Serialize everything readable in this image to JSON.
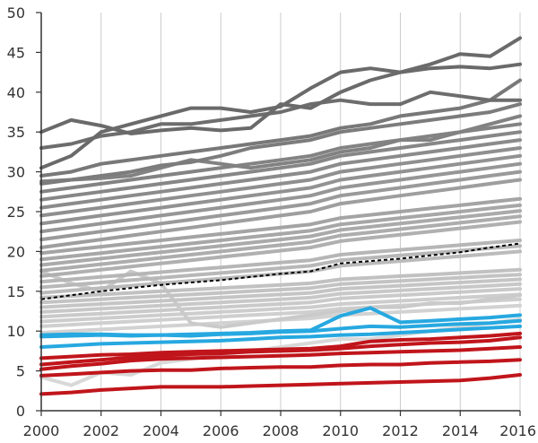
{
  "chart_data": {
    "type": "line",
    "title": "",
    "xlabel": "",
    "ylabel": "",
    "xlim": [
      2000,
      2016
    ],
    "ylim": [
      0,
      50
    ],
    "x_ticks": [
      2000,
      2002,
      2004,
      2006,
      2008,
      2010,
      2012,
      2014,
      2016
    ],
    "y_ticks": [
      0,
      5,
      10,
      15,
      20,
      25,
      30,
      35,
      40,
      45,
      50
    ],
    "grid": "vertical",
    "legend": "none",
    "colors": {
      "highlight_red": "#c0151b",
      "highlight_blue": "#27a8e0",
      "reference_dashed": "#000000",
      "background_grey_dark": "#6a6a6a",
      "background_grey_light": "#d8d8d8",
      "gridline": "#cccccc"
    },
    "x": [
      2000,
      2001,
      2002,
      2003,
      2004,
      2005,
      2006,
      2007,
      2008,
      2009,
      2010,
      2011,
      2012,
      2013,
      2014,
      2015,
      2016
    ],
    "reference_series": {
      "style": "dashed",
      "values": [
        14.0,
        14.5,
        15.0,
        15.4,
        15.8,
        16.1,
        16.4,
        16.8,
        17.2,
        17.5,
        18.5,
        18.8,
        19.1,
        19.5,
        19.9,
        20.5,
        21.0
      ]
    },
    "highlight_red_series": [
      {
        "values": [
          2.1,
          2.3,
          2.6,
          2.8,
          3.0,
          3.0,
          3.0,
          3.1,
          3.2,
          3.3,
          3.4,
          3.5,
          3.6,
          3.7,
          3.8,
          4.1,
          4.5
        ]
      },
      {
        "values": [
          4.4,
          4.6,
          4.8,
          5.0,
          5.1,
          5.1,
          5.3,
          5.4,
          5.5,
          5.5,
          5.7,
          5.8,
          5.8,
          6.0,
          6.1,
          6.2,
          6.4
        ]
      },
      {
        "values": [
          5.2,
          5.6,
          5.9,
          6.3,
          6.5,
          6.6,
          6.7,
          6.8,
          6.9,
          7.0,
          7.2,
          7.3,
          7.4,
          7.5,
          7.6,
          7.8,
          8.0
        ]
      },
      {
        "values": [
          5.8,
          6.1,
          6.4,
          6.7,
          6.9,
          7.1,
          7.2,
          7.4,
          7.5,
          7.6,
          7.8,
          8.1,
          8.3,
          8.5,
          8.6,
          8.8,
          9.2
        ]
      },
      {
        "values": [
          6.6,
          6.8,
          7.0,
          7.1,
          7.3,
          7.4,
          7.5,
          7.6,
          7.7,
          7.8,
          8.1,
          8.7,
          8.9,
          9.0,
          9.2,
          9.4,
          9.7
        ]
      }
    ],
    "highlight_blue_series": [
      {
        "values": [
          8.0,
          8.2,
          8.4,
          8.5,
          8.6,
          8.7,
          8.8,
          9.0,
          9.2,
          9.3,
          9.5,
          9.6,
          9.8,
          10.0,
          10.2,
          10.4,
          10.6
        ]
      },
      {
        "values": [
          9.3,
          9.4,
          9.5,
          9.4,
          9.5,
          9.4,
          9.6,
          9.7,
          9.9,
          10.0,
          10.3,
          10.6,
          10.5,
          10.7,
          10.9,
          11.0,
          11.3
        ]
      },
      {
        "values": [
          9.5,
          9.6,
          9.6,
          9.5,
          9.5,
          9.6,
          9.7,
          9.8,
          10.0,
          10.1,
          11.9,
          12.9,
          11.1,
          11.3,
          11.5,
          11.7,
          12.0
        ]
      }
    ],
    "background_series": [
      {
        "values": [
          35.0,
          36.5,
          35.8,
          34.8,
          35.2,
          35.5,
          35.2,
          35.5,
          38.5,
          38.0,
          40.0,
          41.5,
          42.5,
          43.0,
          43.2,
          43.0,
          43.5
        ]
      },
      {
        "values": [
          30.5,
          32.0,
          35.0,
          36.0,
          37.0,
          38.0,
          38.0,
          37.5,
          38.2,
          40.5,
          42.5,
          43.0,
          42.5,
          43.5,
          44.8,
          44.5,
          46.8
        ]
      },
      {
        "values": [
          33.0,
          33.5,
          34.5,
          35.0,
          36.0,
          36.0,
          36.5,
          37.0,
          37.5,
          38.5,
          39.0,
          38.5,
          38.5,
          40.0,
          39.5,
          39.0,
          39.0
        ]
      },
      {
        "values": [
          29.5,
          30.0,
          31.0,
          31.5,
          32.0,
          32.5,
          33.0,
          33.5,
          34.0,
          34.5,
          35.5,
          36.0,
          37.0,
          37.5,
          38.0,
          39.0,
          41.5
        ]
      },
      {
        "values": [
          28.5,
          29.0,
          29.5,
          30.0,
          30.8,
          31.2,
          32.0,
          33.0,
          33.5,
          34.0,
          35.0,
          35.5,
          36.0,
          36.5,
          37.0,
          37.5,
          38.5
        ]
      },
      {
        "values": [
          28.8,
          29.0,
          29.2,
          29.5,
          30.5,
          31.5,
          31.0,
          30.5,
          31.0,
          31.5,
          32.5,
          33.0,
          34.0,
          34.0,
          35.0,
          36.0,
          37.0
        ]
      },
      {
        "values": [
          27.5,
          28.0,
          28.5,
          29.0,
          29.5,
          30.0,
          30.5,
          31.0,
          31.5,
          32.0,
          33.0,
          33.5,
          34.0,
          34.5,
          35.0,
          35.5,
          36.0
        ]
      },
      {
        "values": [
          26.5,
          27.0,
          27.5,
          28.0,
          28.5,
          29.0,
          29.5,
          30.0,
          30.5,
          31.0,
          32.0,
          32.5,
          33.0,
          33.5,
          34.0,
          34.5,
          35.0
        ]
      },
      {
        "values": [
          25.5,
          26.0,
          26.5,
          27.0,
          27.5,
          28.0,
          28.5,
          29.0,
          29.5,
          30.0,
          31.0,
          31.5,
          32.0,
          32.5,
          33.0,
          33.5,
          34.0
        ]
      },
      {
        "values": [
          24.5,
          25.0,
          25.5,
          26.0,
          26.5,
          27.0,
          27.5,
          28.0,
          28.5,
          29.0,
          30.0,
          30.5,
          31.0,
          31.5,
          32.0,
          32.5,
          33.0
        ]
      },
      {
        "values": [
          23.5,
          24.0,
          24.5,
          25.0,
          25.5,
          26.0,
          26.5,
          27.0,
          27.5,
          28.0,
          29.0,
          29.5,
          30.0,
          30.5,
          31.0,
          31.5,
          32.0
        ]
      },
      {
        "values": [
          22.5,
          23.0,
          23.5,
          24.0,
          24.5,
          25.0,
          25.5,
          26.0,
          26.5,
          27.0,
          28.0,
          28.5,
          29.0,
          29.5,
          30.0,
          30.5,
          31.0
        ]
      },
      {
        "values": [
          21.5,
          22.0,
          22.5,
          23.0,
          23.5,
          24.0,
          24.5,
          25.0,
          25.5,
          26.0,
          27.0,
          27.5,
          28.0,
          28.5,
          29.0,
          29.5,
          30.0
        ]
      },
      {
        "values": [
          20.5,
          21.0,
          21.5,
          22.0,
          22.5,
          23.0,
          23.5,
          24.0,
          24.5,
          25.0,
          26.0,
          26.5,
          27.0,
          27.5,
          28.0,
          28.5,
          29.0
        ]
      },
      {
        "values": [
          19.8,
          20.2,
          20.6,
          21.0,
          21.4,
          21.8,
          22.2,
          22.6,
          23.0,
          23.4,
          24.2,
          24.6,
          25.0,
          25.4,
          25.8,
          26.2,
          26.6
        ]
      },
      {
        "values": [
          19.0,
          19.4,
          19.8,
          20.2,
          20.6,
          21.0,
          21.4,
          21.8,
          22.2,
          22.6,
          23.4,
          23.8,
          24.2,
          24.6,
          25.0,
          25.4,
          25.8
        ]
      },
      {
        "values": [
          18.3,
          18.7,
          19.1,
          19.5,
          19.9,
          20.3,
          20.7,
          21.1,
          21.5,
          21.9,
          22.7,
          23.1,
          23.5,
          23.9,
          24.3,
          24.7,
          25.1
        ]
      },
      {
        "values": [
          17.6,
          18.0,
          18.4,
          18.8,
          19.2,
          19.6,
          20.0,
          20.4,
          20.8,
          21.2,
          22.0,
          22.4,
          22.8,
          23.2,
          23.6,
          24.0,
          24.4
        ]
      },
      {
        "values": [
          16.9,
          17.3,
          17.7,
          18.1,
          18.5,
          18.9,
          19.3,
          19.7,
          20.1,
          20.5,
          21.3,
          21.7,
          22.1,
          22.5,
          22.9,
          23.3,
          23.7
        ]
      },
      {
        "values": [
          16.2,
          16.5,
          16.8,
          17.1,
          17.4,
          17.7,
          18.0,
          18.3,
          18.6,
          18.9,
          19.6,
          19.9,
          20.2,
          20.5,
          20.8,
          21.1,
          21.4
        ]
      },
      {
        "values": [
          15.5,
          15.8,
          16.1,
          16.4,
          16.7,
          17.0,
          17.3,
          17.6,
          17.9,
          18.2,
          18.9,
          19.2,
          19.5,
          19.8,
          20.1,
          20.4,
          20.7
        ]
      },
      {
        "values": [
          14.8,
          15.1,
          15.4,
          15.7,
          16.0,
          16.3,
          16.6,
          16.9,
          17.2,
          17.5,
          18.2,
          18.5,
          18.8,
          19.1,
          19.4,
          19.7,
          20.0
        ]
      },
      {
        "values": [
          14.2,
          14.4,
          14.6,
          14.8,
          15.0,
          15.2,
          15.4,
          15.6,
          15.8,
          16.0,
          16.5,
          16.7,
          16.9,
          17.1,
          17.3,
          17.5,
          17.7
        ]
      },
      {
        "values": [
          13.6,
          13.8,
          14.0,
          14.2,
          14.4,
          14.6,
          14.8,
          15.0,
          15.2,
          15.4,
          15.9,
          16.1,
          16.3,
          16.5,
          16.7,
          16.9,
          17.1
        ]
      },
      {
        "values": [
          13.0,
          13.2,
          13.4,
          13.6,
          13.8,
          14.0,
          14.2,
          14.4,
          14.6,
          14.8,
          15.3,
          15.5,
          15.7,
          15.9,
          16.1,
          16.3,
          16.5
        ]
      },
      {
        "values": [
          12.4,
          12.6,
          12.8,
          13.0,
          13.2,
          13.4,
          13.6,
          13.8,
          14.0,
          14.2,
          14.7,
          14.9,
          15.1,
          15.3,
          15.5,
          15.7,
          15.9
        ]
      },
      {
        "values": [
          11.8,
          12.0,
          12.2,
          12.4,
          12.6,
          12.8,
          13.0,
          13.2,
          13.4,
          13.6,
          14.1,
          14.3,
          14.5,
          14.7,
          14.9,
          15.1,
          15.3
        ]
      },
      {
        "values": [
          11.2,
          11.4,
          11.6,
          11.8,
          12.0,
          12.2,
          12.4,
          12.6,
          12.8,
          13.0,
          13.4,
          13.6,
          13.8,
          14.0,
          14.2,
          14.4,
          14.6
        ]
      },
      {
        "values": [
          10.6,
          10.8,
          11.0,
          11.2,
          11.4,
          11.6,
          11.8,
          12.0,
          12.2,
          12.4,
          12.8,
          13.0,
          13.2,
          13.4,
          13.6,
          13.8,
          14.0
        ]
      },
      {
        "values": [
          17.5,
          16.0,
          15.0,
          17.5,
          16.0,
          11.0,
          10.5,
          11.0,
          11.5,
          12.0,
          12.5,
          13.0,
          13.0,
          13.5,
          13.5,
          14.0,
          14.5
        ]
      },
      {
        "values": [
          4.2,
          3.2,
          4.8,
          4.5,
          6.0,
          6.5,
          7.0,
          7.5,
          8.0,
          8.5,
          9.0,
          9.0,
          9.5,
          10.0,
          10.5,
          11.0,
          11.5
        ]
      },
      {
        "values": [
          9.8,
          10.0,
          10.2,
          10.4,
          10.6,
          10.8,
          11.0,
          11.2,
          11.4,
          11.6,
          12.0,
          12.2,
          12.4,
          12.6,
          12.8,
          13.0,
          13.2
        ]
      }
    ]
  }
}
